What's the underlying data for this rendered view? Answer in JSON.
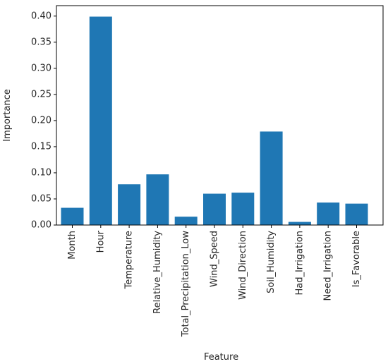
{
  "chart_data": {
    "type": "bar",
    "title": "",
    "xlabel": "Feature",
    "ylabel": "Importance",
    "categories": [
      "Month",
      "Hour",
      "Temperature",
      "Relative_Humidity",
      "Total_Precipitation_Low",
      "Wind_Speed",
      "Wind_Direction",
      "Soil_Humidity",
      "Had_Irrigation",
      "Need_Irrigation",
      "Is_Favorable"
    ],
    "values": [
      0.033,
      0.399,
      0.078,
      0.097,
      0.016,
      0.06,
      0.062,
      0.179,
      0.006,
      0.043,
      0.041
    ],
    "ylim": [
      0,
      0.42
    ],
    "yticks": [
      "0.00",
      "0.05",
      "0.10",
      "0.15",
      "0.20",
      "0.25",
      "0.30",
      "0.35",
      "0.40"
    ],
    "grid": false,
    "bar_color": "#1f77b4",
    "axis_color": "#000000",
    "text_color": "#262626"
  }
}
